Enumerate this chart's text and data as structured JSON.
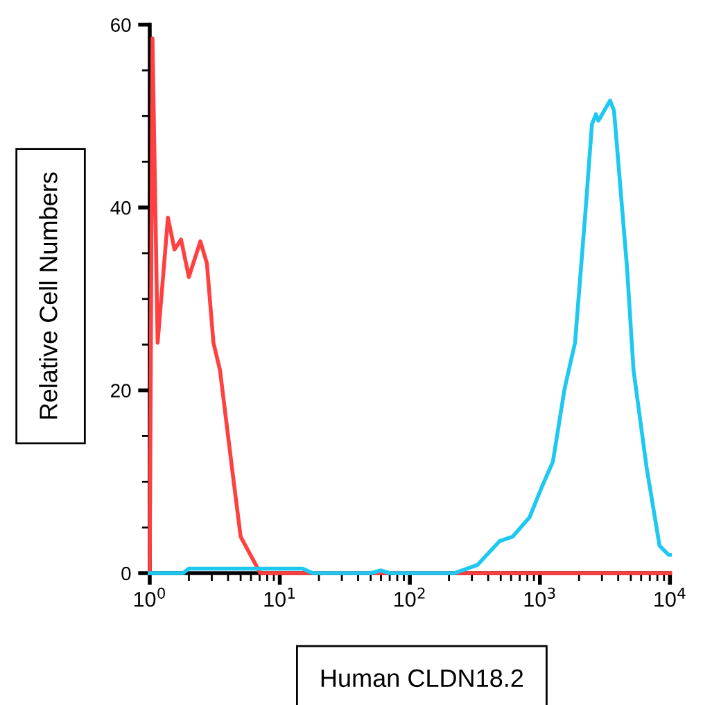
{
  "chart_data": {
    "type": "line",
    "xlabel": "Human CLDN18.2",
    "ylabel": "Relative Cell Numbers",
    "log": "x",
    "grid": false,
    "legend": false,
    "xlim": [
      1,
      10000
    ],
    "ylim": [
      0,
      60
    ],
    "xticks": [
      {
        "value": 1,
        "label": "10$^{0}$"
      },
      {
        "value": 10,
        "label": "10$^{1}$"
      },
      {
        "value": 100,
        "label": "10$^{2}$"
      },
      {
        "value": 1000,
        "label": "10$^{3}$"
      },
      {
        "value": 10000,
        "label": "10$^{4}$"
      }
    ],
    "yticks": [
      0,
      {
        "value": 5,
        "label": null
      },
      {
        "value": 10,
        "label": null
      },
      {
        "value": 15,
        "label": null
      },
      20,
      {
        "value": 25,
        "label": null
      },
      {
        "value": 30,
        "label": null
      },
      {
        "value": 35,
        "label": null
      },
      40,
      {
        "value": 45,
        "label": null
      },
      {
        "value": 50,
        "label": null
      },
      {
        "value": 55,
        "label": null
      },
      60
    ],
    "series": [
      {
        "color": "#ff4040",
        "x": [
          1.0,
          1.05,
          1.15,
          1.38,
          1.55,
          1.74,
          2.0,
          2.45,
          2.75,
          3.09,
          3.47,
          4.37,
          5.0,
          7.08,
          10000
        ],
        "values": [
          0,
          58.5,
          25.2,
          38.9,
          35.4,
          36.5,
          32.4,
          36.3,
          33.9,
          25.2,
          22.2,
          10.6,
          4.0,
          0,
          0
        ]
      },
      {
        "color": "#1ec8f0",
        "x": [
          1.0,
          1.2,
          1.5,
          1.8,
          2.0,
          15,
          18,
          20,
          50,
          60,
          70,
          219,
          331,
          490,
          617,
          832,
          1047,
          1259,
          1549,
          1862,
          2239,
          2512,
          2692,
          2818,
          3467,
          3715,
          4677,
          5248,
          6607,
          8318,
          9772,
          10000
        ],
        "values": [
          0,
          0,
          0,
          0,
          0.5,
          0.5,
          0,
          0,
          0,
          0.3,
          0,
          0,
          0.9,
          3.5,
          4.0,
          6.1,
          9.6,
          12.2,
          20.2,
          25.2,
          39.5,
          49.1,
          50.2,
          49.5,
          51.7,
          50.6,
          33.4,
          22.2,
          11.6,
          3.0,
          2.0,
          2.0
        ]
      }
    ]
  }
}
